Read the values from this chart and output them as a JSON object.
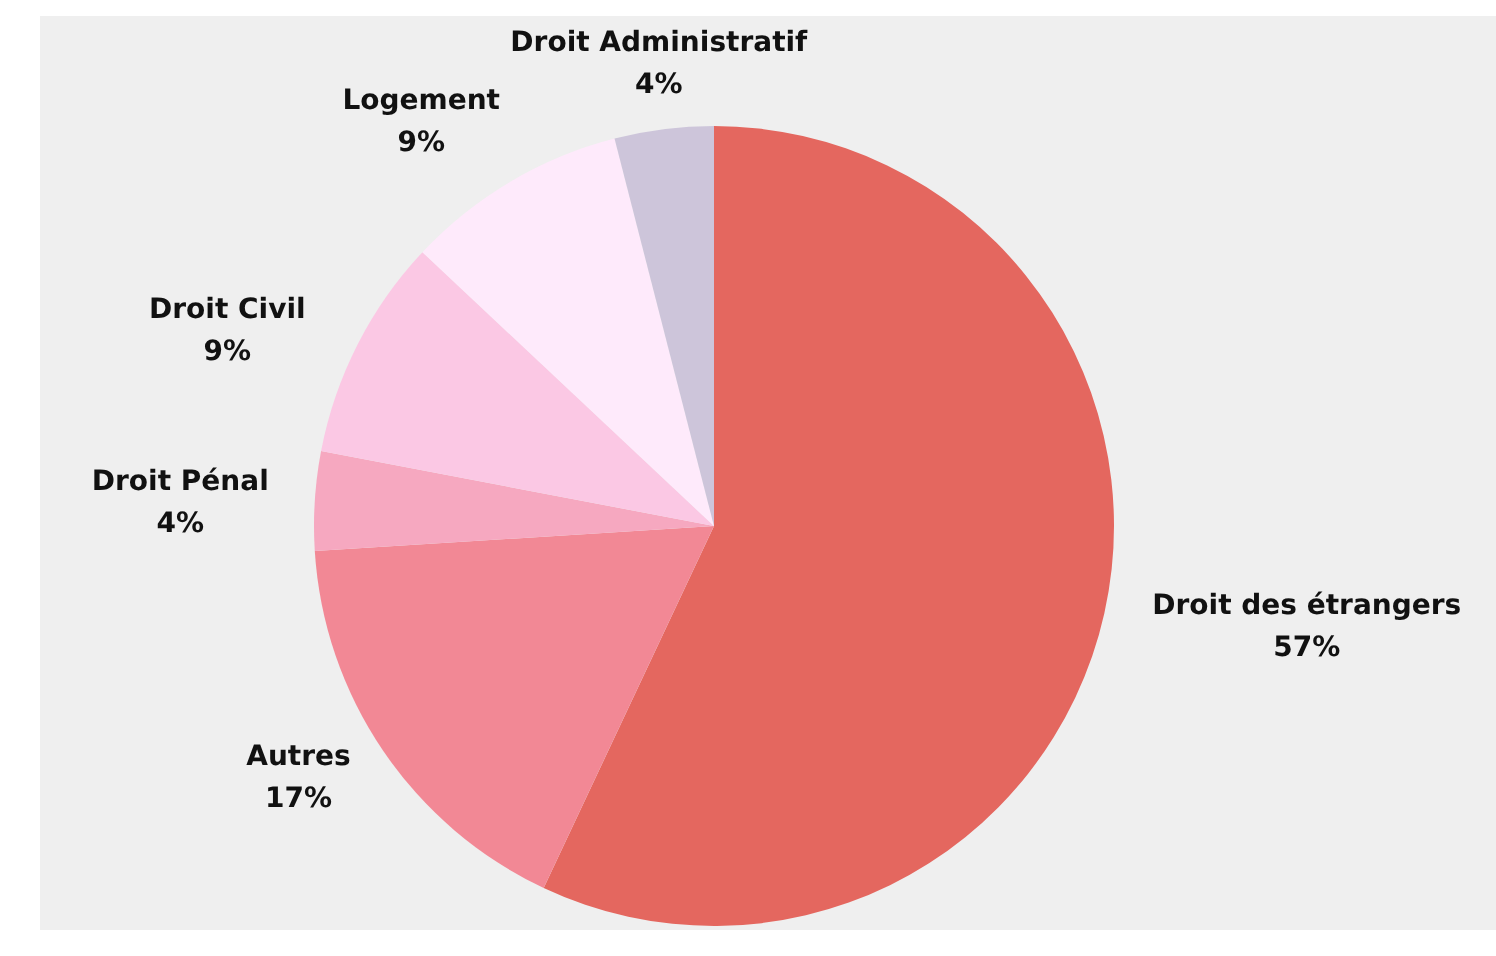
{
  "chart_data": {
    "type": "pie",
    "categories": [
      "Droit des étrangers",
      "Autres",
      "Droit Pénal",
      "Droit Civil",
      "Logement",
      "Droit Administratif"
    ],
    "values": [
      57,
      17,
      4,
      9,
      9,
      4
    ],
    "value_labels": [
      "57%",
      "17%",
      "4%",
      "9%",
      "9%",
      "4%"
    ],
    "colors": [
      "#e4675f",
      "#f28895",
      "#f6a8c0",
      "#fbc8e4",
      "#feeafb",
      "#cdc5da"
    ]
  }
}
